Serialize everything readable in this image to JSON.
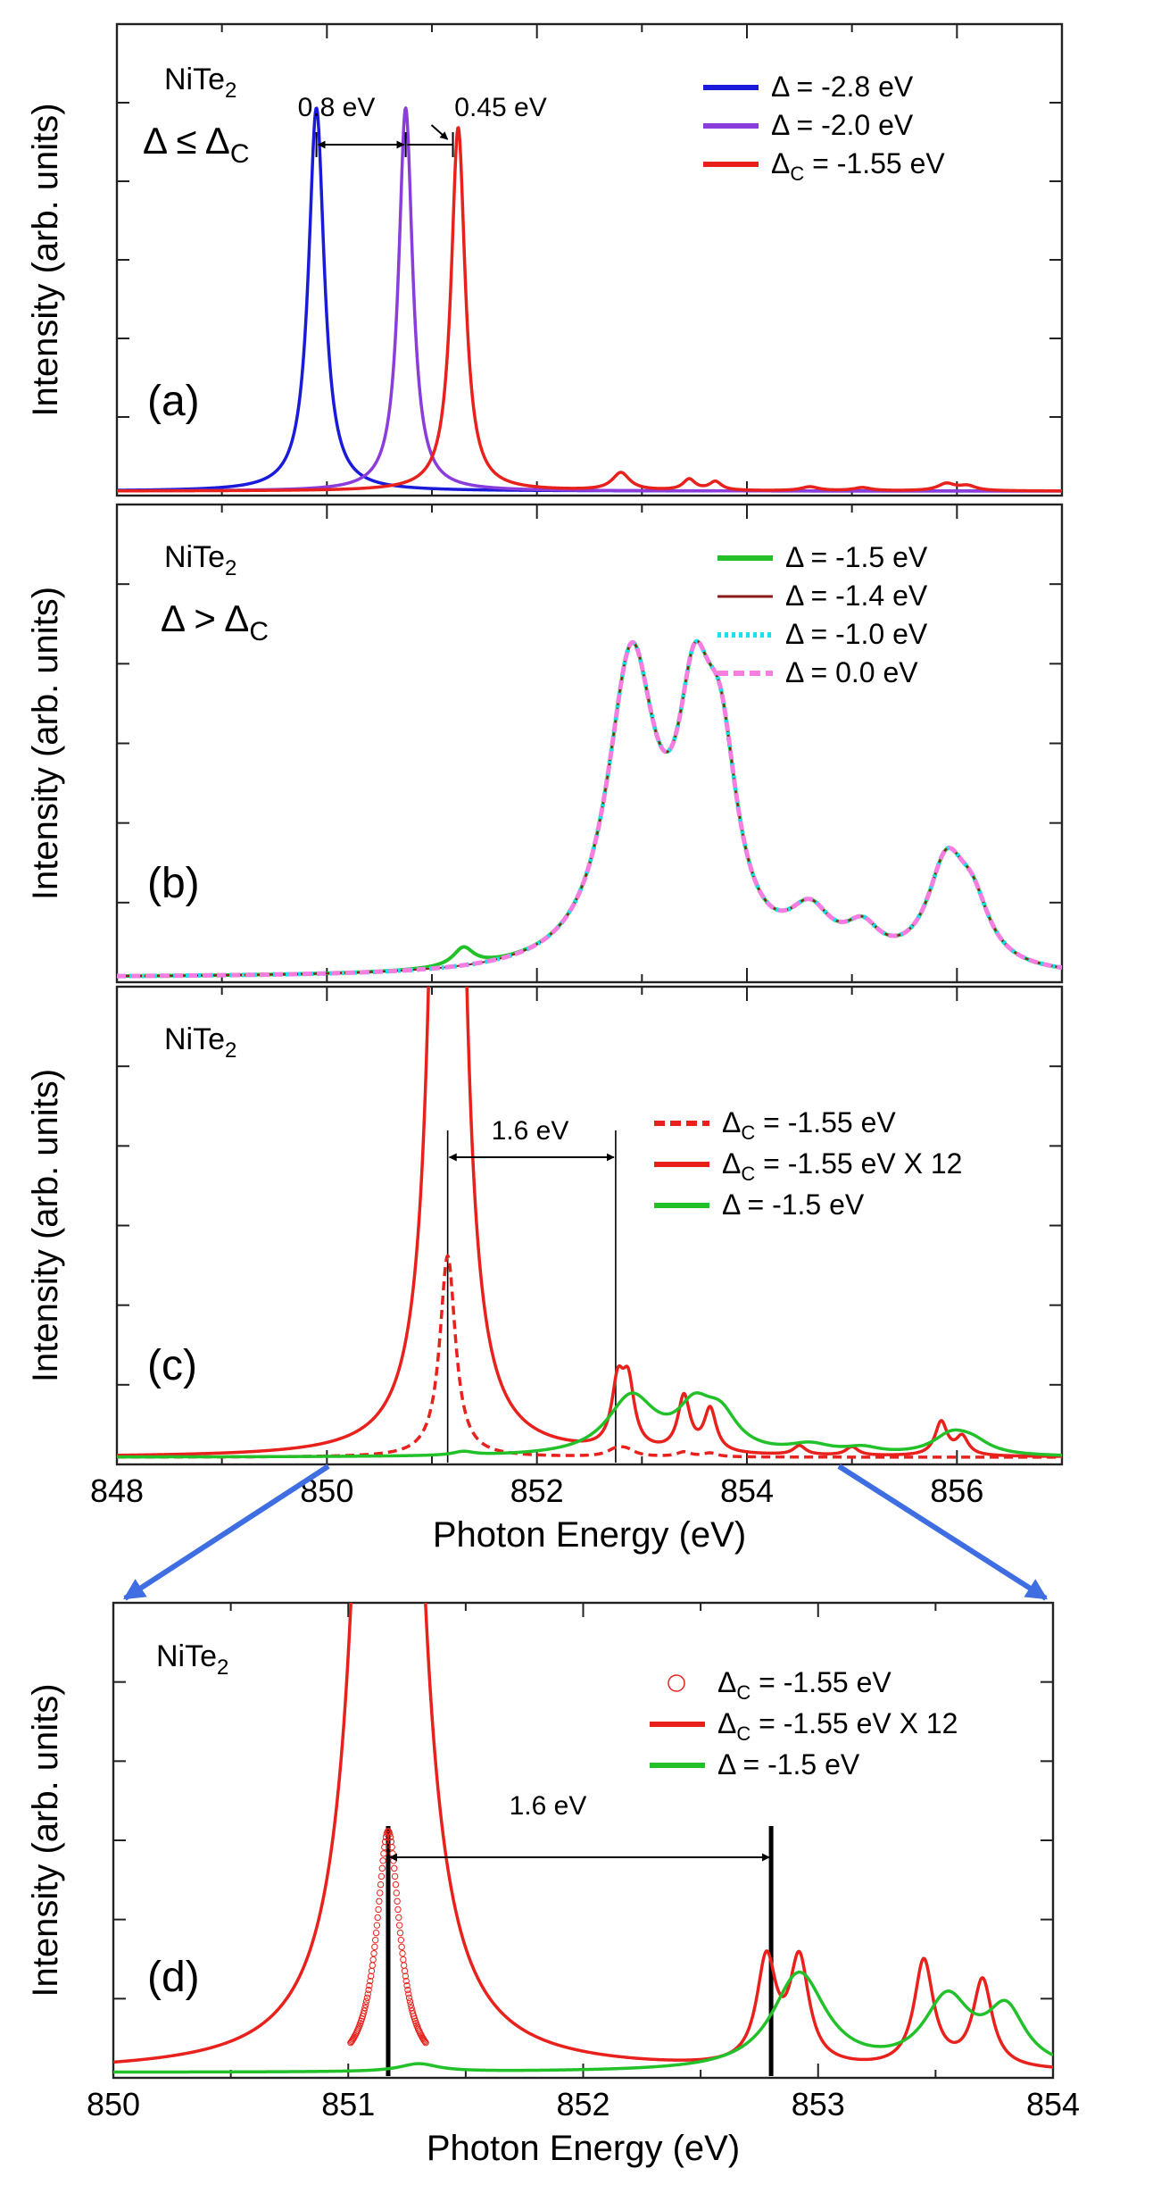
{
  "chart_data": [
    {
      "id": "a",
      "type": "line",
      "panel_label": "(a)",
      "title": "NiTe",
      "title_sub": "2",
      "condition": "Δ ≤ Δ",
      "condition_sub": "C",
      "ylabel": "Intensity (arb. units)",
      "xlabel": "",
      "xlim": [
        848,
        857
      ],
      "ylim": [
        0,
        1.0
      ],
      "yaxis_numbers": false,
      "legend_position": "top-right",
      "annotations": [
        {
          "text": "0.8 eV",
          "from": 849.9,
          "to": 850.75,
          "y": 0.8
        },
        {
          "text": "0.45 eV",
          "from": 850.75,
          "to": 851.2,
          "y": 0.8
        }
      ],
      "series": [
        {
          "name": "Δ = -2.8 eV",
          "color": "#1a1adb",
          "style": "solid",
          "peaks": [
            [
              849.9,
              0.98,
              0.09
            ]
          ]
        },
        {
          "name": "Δ = -2.0 eV",
          "color": "#8a3ddb",
          "style": "solid",
          "peaks": [
            [
              850.75,
              0.98,
              0.08
            ]
          ]
        },
        {
          "name": "Δ",
          "name_sub": "C",
          "name_rest": " = -1.55 eV",
          "color": "#e8211c",
          "style": "solid",
          "peaks": [
            [
              851.25,
              0.93,
              0.08
            ],
            [
              852.8,
              0.045,
              0.1
            ],
            [
              853.45,
              0.028,
              0.07
            ],
            [
              853.7,
              0.022,
              0.07
            ],
            [
              854.6,
              0.01,
              0.1
            ],
            [
              855.1,
              0.008,
              0.1
            ],
            [
              855.9,
              0.018,
              0.1
            ],
            [
              856.1,
              0.012,
              0.1
            ]
          ]
        }
      ]
    },
    {
      "id": "b",
      "type": "line",
      "panel_label": "(b)",
      "title": "NiTe",
      "title_sub": "2",
      "condition": "Δ > Δ",
      "condition_sub": "C",
      "ylabel": "Intensity (arb. units)",
      "xlabel": "",
      "xlim": [
        848,
        857
      ],
      "ylim": [
        0,
        1.0
      ],
      "yaxis_numbers": false,
      "legend_position": "top-right",
      "series": [
        {
          "name": "Δ = -1.5 eV",
          "color": "#22c12a",
          "style": "solid",
          "width": 4,
          "peaks": [
            [
              851.3,
              0.035,
              0.12
            ],
            [
              852.9,
              0.58,
              0.28
            ],
            [
              853.5,
              0.4,
              0.2
            ],
            [
              853.75,
              0.33,
              0.2
            ],
            [
              854.6,
              0.09,
              0.25
            ],
            [
              855.1,
              0.06,
              0.2
            ],
            [
              855.9,
              0.19,
              0.22
            ],
            [
              856.15,
              0.1,
              0.2
            ]
          ]
        },
        {
          "name": "Δ = -1.4 eV",
          "color": "#8b1a1a",
          "style": "solid",
          "width": 2,
          "peaks": [
            [
              852.9,
              0.58,
              0.28
            ],
            [
              853.5,
              0.4,
              0.2
            ],
            [
              853.75,
              0.33,
              0.2
            ],
            [
              854.6,
              0.09,
              0.25
            ],
            [
              855.1,
              0.06,
              0.2
            ],
            [
              855.9,
              0.19,
              0.22
            ],
            [
              856.15,
              0.1,
              0.2
            ]
          ]
        },
        {
          "name": "Δ = -1.0 eV",
          "color": "#19e1f0",
          "style": "dotted",
          "width": 5,
          "peaks": [
            [
              852.9,
              0.58,
              0.28
            ],
            [
              853.5,
              0.4,
              0.2
            ],
            [
              853.75,
              0.33,
              0.2
            ],
            [
              854.6,
              0.09,
              0.25
            ],
            [
              855.1,
              0.06,
              0.2
            ],
            [
              855.9,
              0.19,
              0.22
            ],
            [
              856.15,
              0.1,
              0.2
            ]
          ]
        },
        {
          "name": "Δ = 0.0 eV",
          "color": "#f77ee0",
          "style": "dashed",
          "width": 5,
          "peaks": [
            [
              852.9,
              0.58,
              0.28
            ],
            [
              853.5,
              0.4,
              0.2
            ],
            [
              853.75,
              0.33,
              0.2
            ],
            [
              854.6,
              0.09,
              0.25
            ],
            [
              855.1,
              0.06,
              0.2
            ],
            [
              855.9,
              0.19,
              0.22
            ],
            [
              856.15,
              0.1,
              0.2
            ]
          ]
        }
      ]
    },
    {
      "id": "c",
      "type": "line",
      "panel_label": "(c)",
      "title": "NiTe",
      "title_sub": "2",
      "ylabel": "Intensity (arb. units)",
      "xlabel": "Photon Energy (eV)",
      "xlim": [
        848,
        857
      ],
      "xticks": [
        848,
        850,
        852,
        854,
        856
      ],
      "xticklabels": [
        "848",
        "850",
        "852",
        "854",
        "856"
      ],
      "ylim": [
        0,
        1.0
      ],
      "yaxis_numbers": false,
      "legend_position": "top-right",
      "annotations": [
        {
          "text": "1.6 eV",
          "from": 851.15,
          "to": 852.75,
          "y": 0.66
        }
      ],
      "vlines": [
        851.15,
        852.75
      ],
      "series": [
        {
          "name": "Δ",
          "name_sub": "C",
          "name_rest": " = -1.55 eV",
          "color": "#e8211c",
          "style": "dashed",
          "width": 3.5,
          "peaks": [
            [
              851.15,
              0.66,
              0.09
            ],
            [
              852.75,
              0.02,
              0.1
            ],
            [
              852.85,
              0.02,
              0.1
            ],
            [
              853.4,
              0.015,
              0.08
            ],
            [
              853.65,
              0.012,
              0.08
            ]
          ]
        },
        {
          "name": "Δ",
          "name_sub": "C",
          "name_rest": " = -1.55 eV X 12",
          "color": "#e8211c",
          "style": "solid",
          "width": 3.5,
          "peaks": [
            [
              851.15,
              7.9,
              0.09
            ],
            [
              852.77,
              0.2,
              0.07
            ],
            [
              852.87,
              0.2,
              0.07
            ],
            [
              853.4,
              0.18,
              0.07
            ],
            [
              853.65,
              0.14,
              0.07
            ],
            [
              854.5,
              0.03,
              0.07
            ],
            [
              855.0,
              0.028,
              0.07
            ],
            [
              855.85,
              0.11,
              0.07
            ],
            [
              856.05,
              0.06,
              0.07
            ]
          ]
        },
        {
          "name": "Δ = -1.5 eV",
          "color": "#22c12a",
          "style": "solid",
          "width": 3.5,
          "peaks": [
            [
              851.3,
              0.012,
              0.12
            ],
            [
              852.9,
              0.19,
              0.28
            ],
            [
              853.5,
              0.13,
              0.2
            ],
            [
              853.75,
              0.11,
              0.2
            ],
            [
              854.6,
              0.03,
              0.25
            ],
            [
              855.1,
              0.02,
              0.2
            ],
            [
              855.95,
              0.065,
              0.22
            ],
            [
              856.15,
              0.035,
              0.2
            ]
          ]
        }
      ]
    },
    {
      "id": "d",
      "type": "line",
      "panel_label": "(d)",
      "title": "NiTe",
      "title_sub": "2",
      "ylabel": "Intensity (arb. units)",
      "xlabel": "Photon Energy (eV)",
      "xlim": [
        850,
        854
      ],
      "xticks": [
        850,
        851,
        852,
        853,
        854
      ],
      "xticklabels": [
        "850",
        "851",
        "852",
        "853",
        "854"
      ],
      "ylim": [
        0,
        1.0
      ],
      "yaxis_numbers": false,
      "legend_position": "top-right",
      "annotations": [
        {
          "text": "1.6 eV",
          "from": 851.17,
          "to": 852.8,
          "y": 0.5
        }
      ],
      "vlines": [
        851.17,
        852.8
      ],
      "series": [
        {
          "name": "Δ",
          "name_sub": "C",
          "name_rest": " = -1.55 eV",
          "color": "#e8211c",
          "style": "markers",
          "peaks": [
            [
              851.17,
              0.77,
              0.06
            ]
          ]
        },
        {
          "name": "Δ",
          "name_sub": "C",
          "name_rest": " = -1.55 eV X 12",
          "color": "#e8211c",
          "style": "solid",
          "width": 3.5,
          "peaks": [
            [
              851.17,
              9.2,
              0.07
            ],
            [
              852.78,
              0.33,
              0.05
            ],
            [
              852.92,
              0.33,
              0.05
            ],
            [
              853.45,
              0.34,
              0.05
            ],
            [
              853.7,
              0.28,
              0.05
            ]
          ]
        },
        {
          "name": "Δ = -1.5 eV",
          "color": "#22c12a",
          "style": "solid",
          "width": 3.5,
          "peaks": [
            [
              851.3,
              0.025,
              0.1
            ],
            [
              852.92,
              0.31,
              0.14
            ],
            [
              853.55,
              0.22,
              0.12
            ],
            [
              853.8,
              0.18,
              0.1
            ]
          ]
        }
      ]
    }
  ],
  "zoom_arrows": {
    "color": "#3f6ee3"
  }
}
